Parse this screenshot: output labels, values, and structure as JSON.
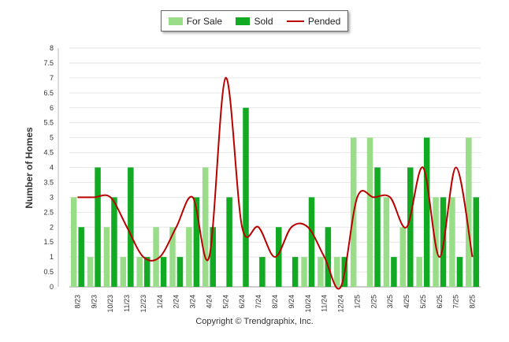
{
  "chart_data": {
    "type": "bar",
    "ylabel": "Number of Homes",
    "xlabel": "",
    "ylim": [
      0,
      8
    ],
    "yticks": [
      "0",
      "0.5",
      "1",
      "1.5",
      "2",
      "2.5",
      "3",
      "3.5",
      "4",
      "4.5",
      "5",
      "5.5",
      "6",
      "6.5",
      "7",
      "7.5",
      "8"
    ],
    "categories": [
      "8/23",
      "9/23",
      "10/23",
      "11/23",
      "12/23",
      "1/24",
      "2/24",
      "3/24",
      "4/24",
      "5/24",
      "6/24",
      "7/24",
      "8/24",
      "9/24",
      "10/24",
      "11/24",
      "12/24",
      "1/25",
      "2/25",
      "3/25",
      "4/25",
      "5/25",
      "6/25",
      "7/25",
      "8/25"
    ],
    "series": [
      {
        "name": "For Sale",
        "type": "bar",
        "color": "#99dd88",
        "values": [
          3,
          1,
          2,
          1,
          1,
          2,
          2,
          2,
          4,
          0,
          0,
          0,
          0,
          0,
          1,
          1,
          1,
          5,
          5,
          3,
          2,
          1,
          3,
          3,
          5
        ]
      },
      {
        "name": "Sold",
        "type": "bar",
        "color": "#11aa22",
        "values": [
          2,
          4,
          3,
          4,
          1,
          1,
          1,
          3,
          2,
          3,
          6,
          1,
          2,
          1,
          3,
          2,
          1,
          0,
          4,
          1,
          4,
          5,
          3,
          1,
          3
        ]
      },
      {
        "name": "Pended",
        "type": "line",
        "color": "#bb0000",
        "values": [
          3,
          3,
          3,
          2,
          1,
          1,
          2,
          3,
          1,
          7,
          2,
          2,
          1,
          2,
          2,
          1,
          0,
          3,
          3,
          3,
          2,
          4,
          1,
          4,
          1
        ]
      }
    ],
    "grid": true,
    "legend_position": "top"
  },
  "legend": {
    "for_sale": "For Sale",
    "sold": "Sold",
    "pended": "Pended"
  },
  "footer": {
    "copyright": "Copyright © Trendgraphix, Inc."
  }
}
